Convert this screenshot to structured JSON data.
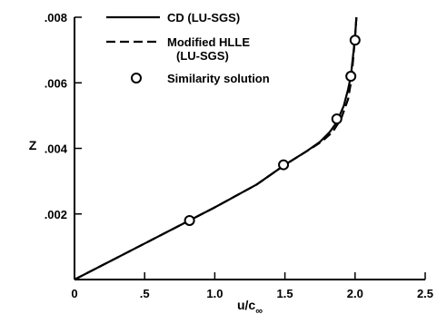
{
  "chart_data": {
    "type": "line",
    "xlabel": "u/c",
    "xlabel_subscript": "∞",
    "ylabel": "Z",
    "xlim": [
      0,
      2.5
    ],
    "ylim": [
      0,
      0.008
    ],
    "x_ticks": [
      {
        "value": 0,
        "label": "0"
      },
      {
        "value": 0.5,
        "label": ".5"
      },
      {
        "value": 1.0,
        "label": "1.0"
      },
      {
        "value": 1.5,
        "label": "1.5"
      },
      {
        "value": 2.0,
        "label": "2.0"
      },
      {
        "value": 2.5,
        "label": "2.5"
      }
    ],
    "y_ticks": [
      {
        "value": 0.002,
        "label": ".002"
      },
      {
        "value": 0.004,
        "label": ".004"
      },
      {
        "value": 0.006,
        "label": ".006"
      },
      {
        "value": 0.008,
        "label": ".008"
      }
    ],
    "grid": false,
    "legend_position": "top-left",
    "series": [
      {
        "name": "CD (LU-SGS)",
        "style": "solid",
        "color": "#000000",
        "x": [
          0,
          0.5,
          1.0,
          1.3,
          1.5,
          1.65,
          1.75,
          1.82,
          1.87,
          1.92,
          1.95,
          1.97,
          1.98,
          1.99,
          2.0,
          2.01
        ],
        "y": [
          0,
          0.0011,
          0.0022,
          0.0029,
          0.0035,
          0.0039,
          0.0042,
          0.0045,
          0.0048,
          0.0053,
          0.0058,
          0.0062,
          0.0066,
          0.007,
          0.0074,
          0.008
        ]
      },
      {
        "name": "Modified HLLE\n(LU-SGS)",
        "style": "dashed",
        "color": "#000000",
        "x": [
          0,
          0.5,
          1.0,
          1.3,
          1.5,
          1.65,
          1.76,
          1.84,
          1.9,
          1.95,
          1.97,
          1.98,
          1.99,
          2.0,
          2.01
        ],
        "y": [
          0,
          0.0011,
          0.0022,
          0.0029,
          0.0035,
          0.0039,
          0.0042,
          0.0045,
          0.0049,
          0.0055,
          0.006,
          0.0064,
          0.0069,
          0.0074,
          0.008
        ]
      },
      {
        "name": "Similarity solution",
        "style": "markers",
        "marker": "open-circle",
        "color": "#000000",
        "x": [
          0.82,
          1.49,
          1.87,
          1.97,
          2.0
        ],
        "y": [
          0.0018,
          0.0035,
          0.0049,
          0.0062,
          0.0073
        ]
      }
    ]
  }
}
